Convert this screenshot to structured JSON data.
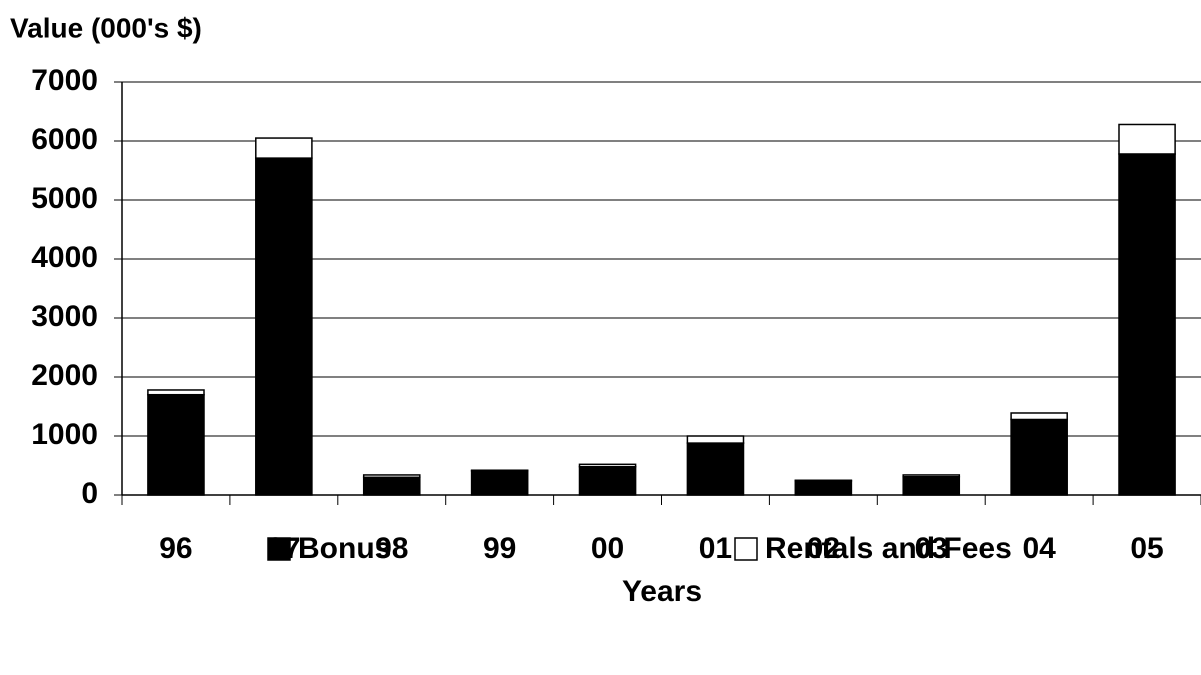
{
  "chart_data": {
    "type": "stacked_bar",
    "y_label": "Value (000's $)",
    "x_label": "Years",
    "categories": [
      "96",
      "97",
      "98",
      "99",
      "00",
      "01",
      "02",
      "03",
      "04",
      "05"
    ],
    "series": [
      {
        "name": "Bonus",
        "color": "#000000",
        "values": [
          1700,
          5710,
          300,
          410,
          480,
          880,
          240,
          310,
          1280,
          5780
        ]
      },
      {
        "name": "Rentals and Fees",
        "color": "#ffffff",
        "values": [
          80,
          340,
          40,
          10,
          40,
          120,
          10,
          30,
          110,
          500
        ]
      }
    ],
    "ylim": [
      0,
      7000
    ],
    "yticks": [
      0,
      1000,
      2000,
      3000,
      4000,
      5000,
      6000,
      7000
    ],
    "grid": true
  }
}
